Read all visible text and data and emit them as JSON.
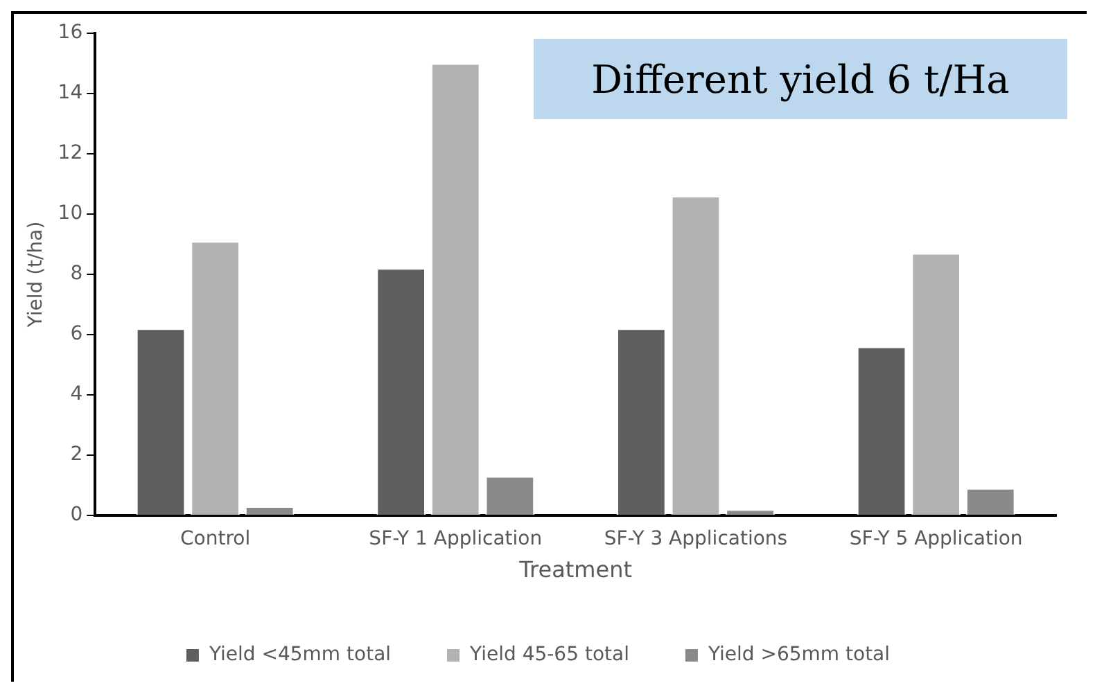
{
  "chart_data": {
    "type": "bar",
    "title": "Different yield 6 t/Ha",
    "xlabel": "Treatment",
    "ylabel": "Yield (t/ha)",
    "categories": [
      "Control",
      "SF-Y 1 Application",
      "SF-Y 3 Applications",
      "SF-Y 5 Application"
    ],
    "series": [
      {
        "name": "Yield <45mm total",
        "color": "#5f5f5f",
        "values": [
          6.2,
          8.2,
          6.2,
          5.6
        ]
      },
      {
        "name": "Yield 45-65 total",
        "color": "#b2b2b2",
        "values": [
          9.1,
          15.0,
          10.6,
          8.7
        ]
      },
      {
        "name": "Yield >65mm total",
        "color": "#8a8a8a",
        "values": [
          0.3,
          1.3,
          0.2,
          0.9
        ]
      }
    ],
    "ylim": [
      0,
      16
    ],
    "yticks": [
      0,
      2,
      4,
      6,
      8,
      10,
      12,
      14,
      16
    ],
    "grid": false,
    "legend": "bottom"
  }
}
